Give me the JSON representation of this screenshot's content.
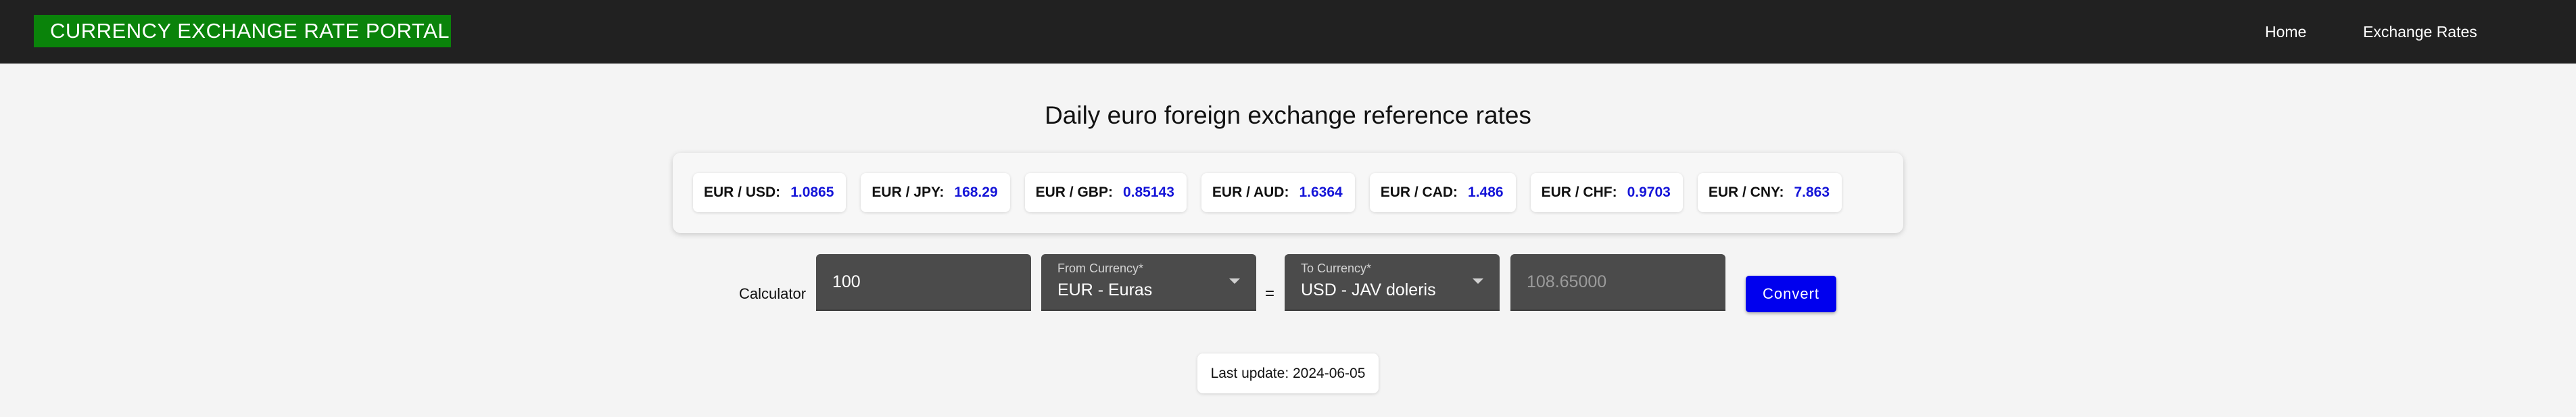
{
  "header": {
    "brand": "CURRENCY EXCHANGE RATE PORTAL",
    "nav": [
      {
        "label": "Home"
      },
      {
        "label": "Exchange Rates"
      }
    ]
  },
  "main": {
    "title": "Daily euro foreign exchange reference rates",
    "rates": [
      {
        "pair": "EUR / USD:",
        "value": "1.0865"
      },
      {
        "pair": "EUR / JPY:",
        "value": "168.29"
      },
      {
        "pair": "EUR / GBP:",
        "value": "0.85143"
      },
      {
        "pair": "EUR / AUD:",
        "value": "1.6364"
      },
      {
        "pair": "EUR / CAD:",
        "value": "1.486"
      },
      {
        "pair": "EUR / CHF:",
        "value": "0.9703"
      },
      {
        "pair": "EUR / CNY:",
        "value": "7.863"
      }
    ],
    "calculator": {
      "label": "Calculator",
      "amount": "100",
      "from_label": "From Currency*",
      "from_value": "EUR - Euras",
      "equals": "=",
      "to_label": "To Currency*",
      "to_value": "USD - JAV doleris",
      "result": "108.65000",
      "convert_label": "Convert"
    },
    "last_update": "Last update: 2024-06-05"
  },
  "colors": {
    "brand_bg": "#0a830a",
    "topbar_bg": "#212121",
    "rate_value": "#1515d8",
    "button_bg": "#0000ee"
  }
}
